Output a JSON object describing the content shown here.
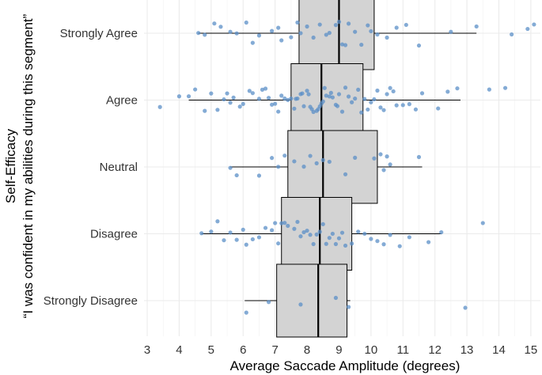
{
  "chart_data": {
    "type": "box",
    "xlabel": "Average Saccade Amplitude (degrees)",
    "ylabel": [
      "Self-Efficacy",
      "“I was confident in my abilities during this segment”"
    ],
    "xlim": [
      2.9,
      15.3
    ],
    "xticks": [
      3,
      4,
      5,
      6,
      7,
      8,
      9,
      10,
      11,
      12,
      13,
      14,
      15
    ],
    "grid": true,
    "box_fill": "#d3d3d3",
    "point_color": "#5b8fc7",
    "categories": [
      "Strongly Agree",
      "Agree",
      "Neutral",
      "Disagree",
      "Strongly Disagree"
    ],
    "boxes": [
      {
        "category": "Strongly Agree",
        "min": 4.6,
        "q1": 7.75,
        "median": 9.0,
        "q3": 10.1,
        "max": 13.3
      },
      {
        "category": "Agree",
        "min": 4.3,
        "q1": 7.5,
        "median": 8.45,
        "q3": 9.75,
        "max": 12.8
      },
      {
        "category": "Neutral",
        "min": 5.6,
        "q1": 7.4,
        "median": 8.5,
        "q3": 10.2,
        "max": 11.6
      },
      {
        "category": "Disagree",
        "min": 4.7,
        "q1": 7.2,
        "median": 8.4,
        "q3": 9.4,
        "max": 12.2
      },
      {
        "category": "Strongly Disagree",
        "min": 6.05,
        "q1": 7.05,
        "median": 8.35,
        "q3": 9.25,
        "max": 9.35
      }
    ],
    "points": [
      {
        "category": "Strongly Agree",
        "values": [
          4.6,
          4.8,
          5.1,
          5.3,
          5.6,
          5.8,
          6.1,
          6.3,
          6.5,
          6.9,
          7.1,
          7.2,
          7.5,
          7.7,
          7.8,
          8.0,
          8.2,
          8.4,
          8.6,
          8.7,
          8.9,
          9.0,
          9.1,
          9.2,
          9.3,
          9.5,
          9.7,
          9.9,
          10.0,
          10.2,
          10.5,
          10.8,
          11.1,
          11.5,
          12.5,
          13.3,
          14.4,
          14.9,
          15.1
        ]
      },
      {
        "category": "Agree",
        "values": [
          3.4,
          4.0,
          4.3,
          4.5,
          4.8,
          5.0,
          5.2,
          5.4,
          5.5,
          5.6,
          5.7,
          5.9,
          6.0,
          6.2,
          6.3,
          6.5,
          6.6,
          6.7,
          6.8,
          6.9,
          7.0,
          7.1,
          7.2,
          7.3,
          7.4,
          7.5,
          7.6,
          7.65,
          7.7,
          7.8,
          7.85,
          7.9,
          8.0,
          8.05,
          8.1,
          8.15,
          8.2,
          8.3,
          8.35,
          8.4,
          8.45,
          8.5,
          8.55,
          8.6,
          8.7,
          8.75,
          8.8,
          8.9,
          8.95,
          9.0,
          9.1,
          9.2,
          9.3,
          9.4,
          9.5,
          9.6,
          9.7,
          9.8,
          9.9,
          10.0,
          10.1,
          10.2,
          10.3,
          10.4,
          10.5,
          10.6,
          10.7,
          10.8,
          11.0,
          11.2,
          11.4,
          11.6,
          12.1,
          12.4,
          12.7,
          13.7,
          14.2
        ]
      },
      {
        "category": "Neutral",
        "values": [
          5.6,
          5.8,
          6.5,
          6.9,
          7.1,
          7.3,
          7.6,
          7.9,
          8.1,
          8.3,
          8.5,
          8.7,
          9.2,
          9.5,
          10.1,
          10.3,
          10.4,
          10.5,
          10.6,
          11.5
        ]
      },
      {
        "category": "Disagree",
        "values": [
          4.7,
          5.0,
          5.2,
          5.4,
          5.6,
          5.8,
          6.0,
          6.1,
          6.3,
          6.5,
          6.7,
          6.9,
          7.0,
          7.1,
          7.2,
          7.3,
          7.4,
          7.6,
          7.7,
          7.8,
          7.9,
          8.0,
          8.1,
          8.2,
          8.3,
          8.4,
          8.5,
          8.6,
          8.7,
          8.8,
          8.9,
          9.0,
          9.1,
          9.2,
          9.4,
          9.6,
          9.8,
          10.0,
          10.2,
          10.4,
          10.6,
          10.9,
          11.2,
          11.8,
          12.2,
          13.5
        ]
      },
      {
        "category": "Strongly Disagree",
        "values": [
          6.1,
          6.8,
          7.8,
          8.9,
          9.3,
          12.95
        ]
      }
    ]
  }
}
